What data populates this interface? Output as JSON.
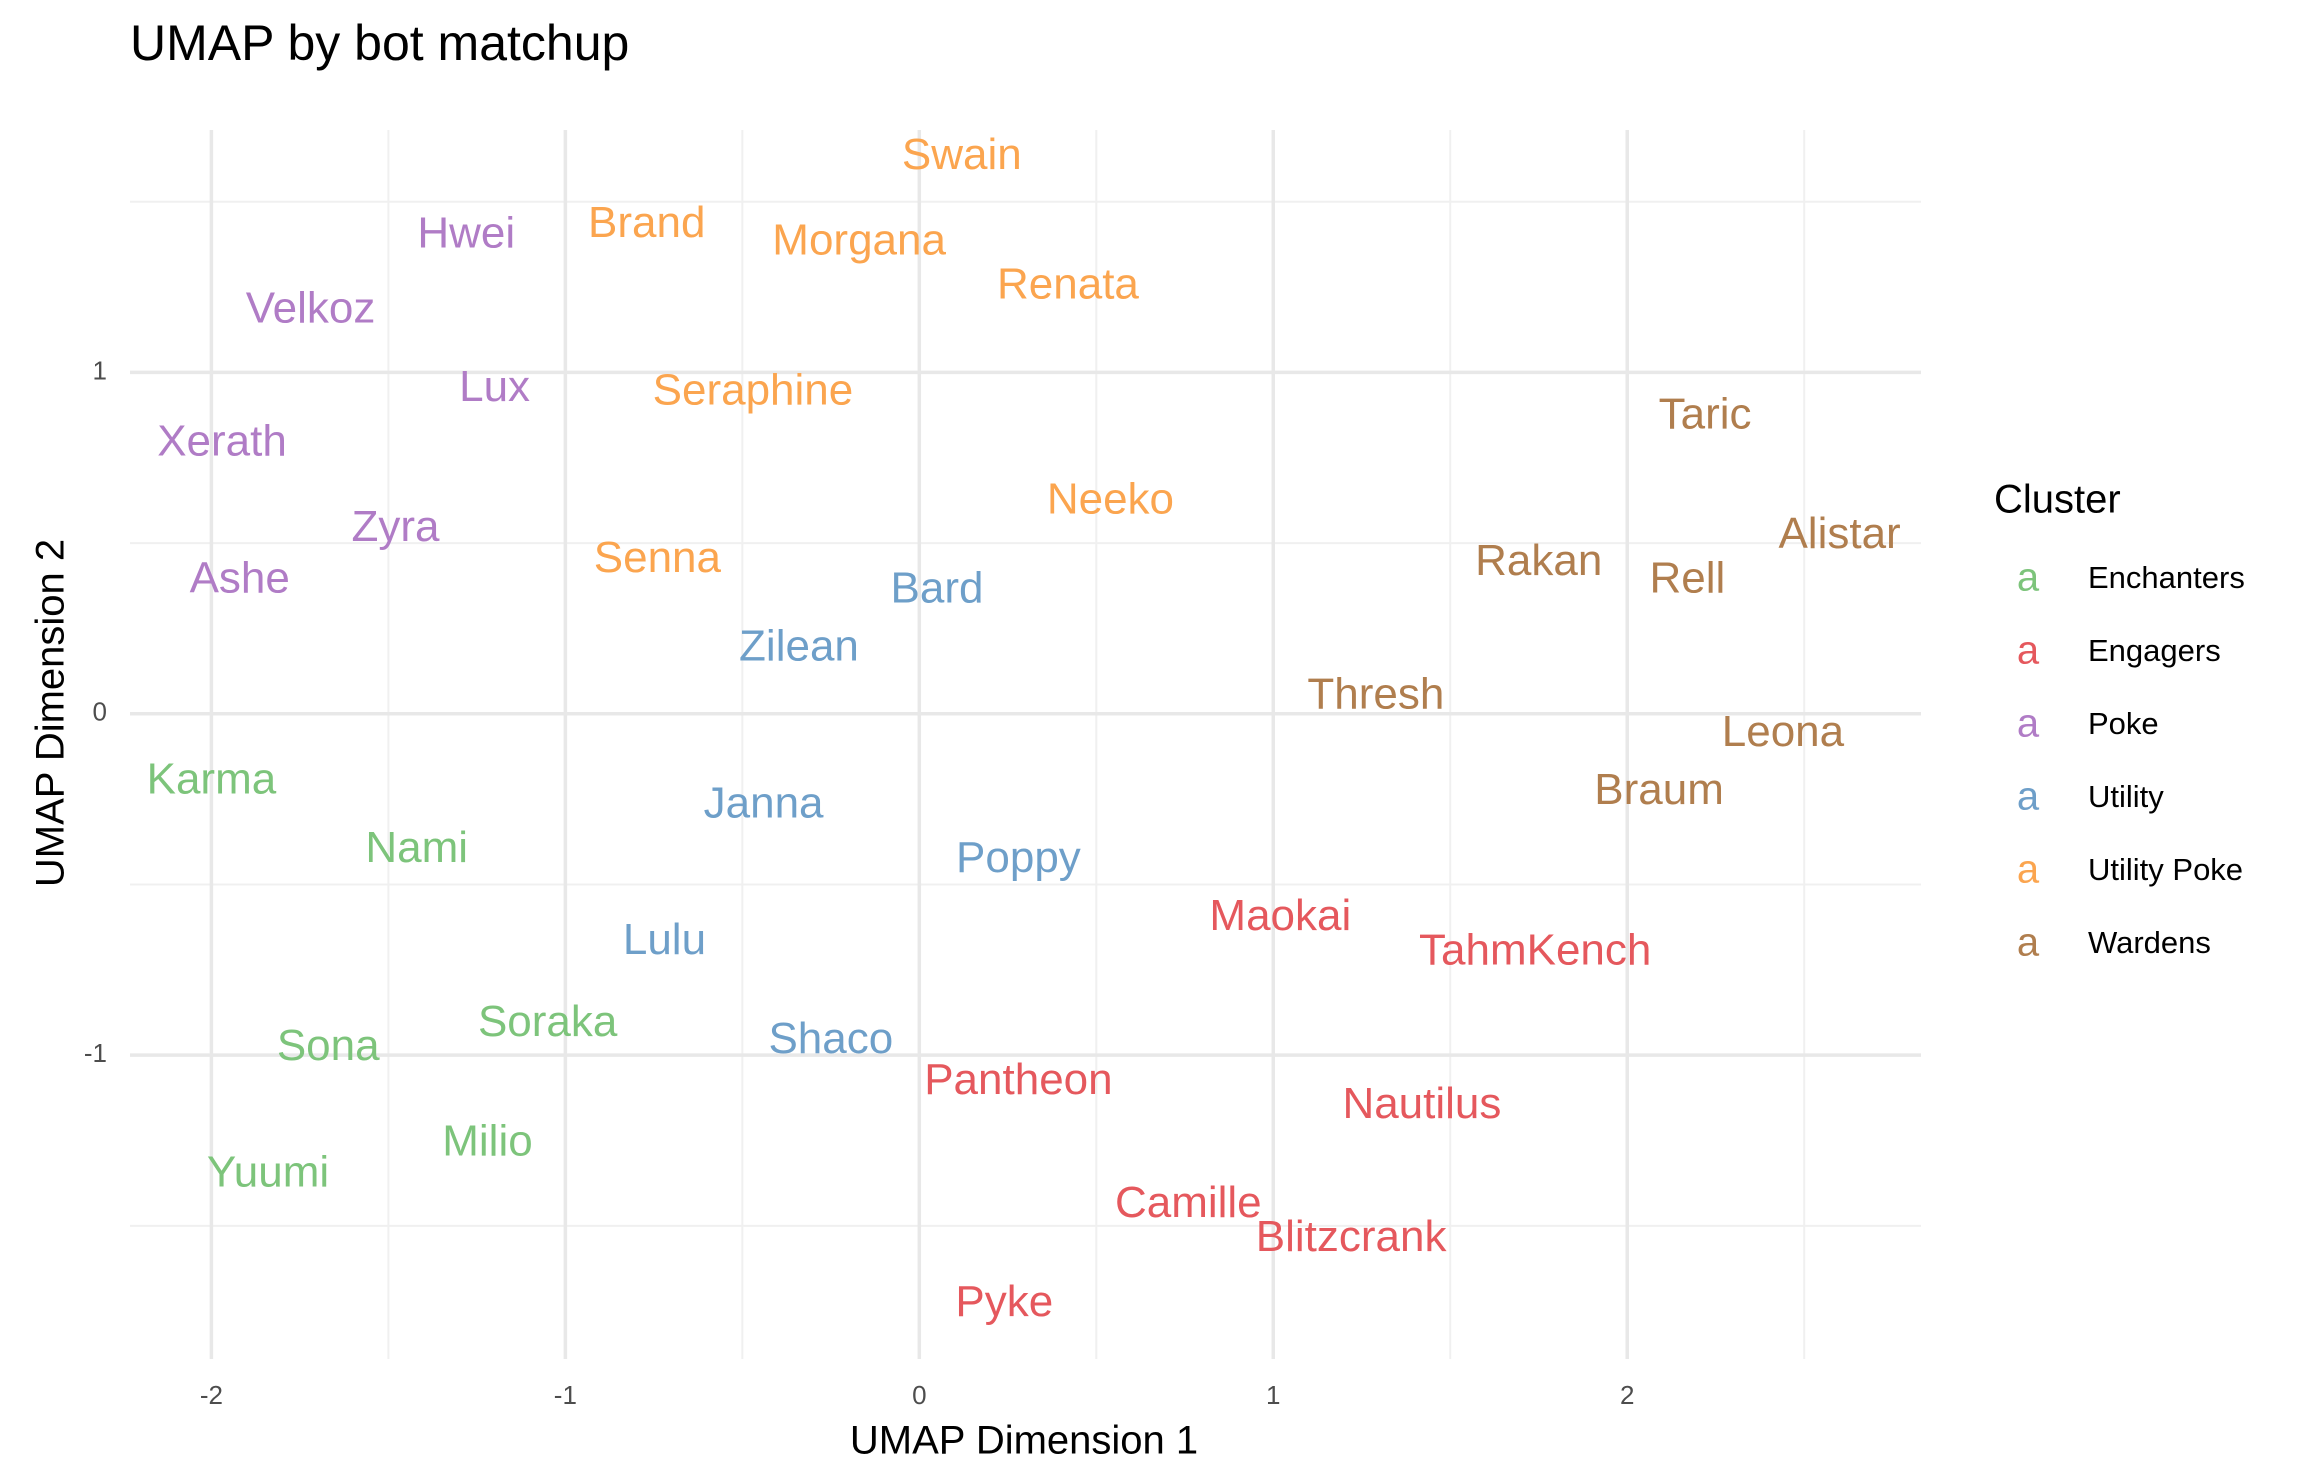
{
  "chart_data": {
    "type": "scatter",
    "title": "UMAP by bot matchup",
    "xlabel": "UMAP Dimension 1",
    "ylabel": "UMAP Dimension 2",
    "legend_title": "Cluster",
    "legend_glyph": "a",
    "legend_position": "right",
    "grid": true,
    "xlim": [
      -2.23,
      2.83
    ],
    "ylim": [
      -1.89,
      1.71
    ],
    "xticks": [
      -2,
      -1,
      0,
      1,
      2
    ],
    "yticks": [
      -1,
      0,
      1
    ],
    "x_minor_ticks": [
      -1.5,
      -0.5,
      0.5,
      1.5,
      2.5
    ],
    "y_minor_ticks": [
      -1.5,
      -0.5,
      0.5,
      1.5
    ],
    "series": [
      {
        "name": "Enchanters",
        "color": "#7dc47b",
        "labels": [
          "Karma",
          "Nami",
          "Soraka",
          "Sona",
          "Milio",
          "Yuumi"
        ],
        "x": [
          -2.0,
          -1.42,
          -1.05,
          -1.67,
          -1.22,
          -1.84
        ],
        "values": [
          -0.2,
          -0.4,
          -0.91,
          -0.98,
          -1.26,
          -1.35
        ]
      },
      {
        "name": "Engagers",
        "color": "#e5585d",
        "labels": [
          "Maokai",
          "TahmKench",
          "Pantheon",
          "Nautilus",
          "Camille",
          "Blitzcrank",
          "Pyke"
        ],
        "x": [
          1.02,
          1.74,
          0.28,
          1.42,
          0.76,
          1.22,
          0.24
        ],
        "values": [
          -0.6,
          -0.7,
          -1.08,
          -1.15,
          -1.44,
          -1.54,
          -1.73
        ]
      },
      {
        "name": "Poke",
        "color": "#b07cc6",
        "labels": [
          "Hwei",
          "Velkoz",
          "Lux",
          "Xerath",
          "Zyra",
          "Ashe"
        ],
        "x": [
          -1.28,
          -1.72,
          -1.2,
          -1.97,
          -1.48,
          -1.92
        ],
        "values": [
          1.4,
          1.18,
          0.95,
          0.79,
          0.54,
          0.39
        ]
      },
      {
        "name": "Utility",
        "color": "#6e9fc9",
        "labels": [
          "Bard",
          "Zilean",
          "Janna",
          "Poppy",
          "Lulu",
          "Shaco"
        ],
        "x": [
          0.05,
          -0.34,
          -0.44,
          0.28,
          -0.72,
          -0.25
        ],
        "values": [
          0.36,
          0.19,
          -0.27,
          -0.43,
          -0.67,
          -0.96
        ]
      },
      {
        "name": "Utility Poke",
        "color": "#fba54f",
        "labels": [
          "Swain",
          "Brand",
          "Morgana",
          "Renata",
          "Seraphine",
          "Neeko",
          "Senna"
        ],
        "x": [
          0.12,
          -0.77,
          -0.17,
          0.42,
          -0.47,
          0.54,
          -0.74
        ],
        "values": [
          1.63,
          1.43,
          1.38,
          1.25,
          0.94,
          0.62,
          0.45
        ]
      },
      {
        "name": "Wardens",
        "color": "#b07e4e",
        "labels": [
          "Taric",
          "Alistar",
          "Rakan",
          "Rell",
          "Thresh",
          "Leona",
          "Braum"
        ],
        "x": [
          2.22,
          2.6,
          1.75,
          2.17,
          1.29,
          2.44,
          2.09
        ],
        "values": [
          0.87,
          0.52,
          0.44,
          0.39,
          0.05,
          -0.06,
          -0.23
        ]
      }
    ]
  }
}
